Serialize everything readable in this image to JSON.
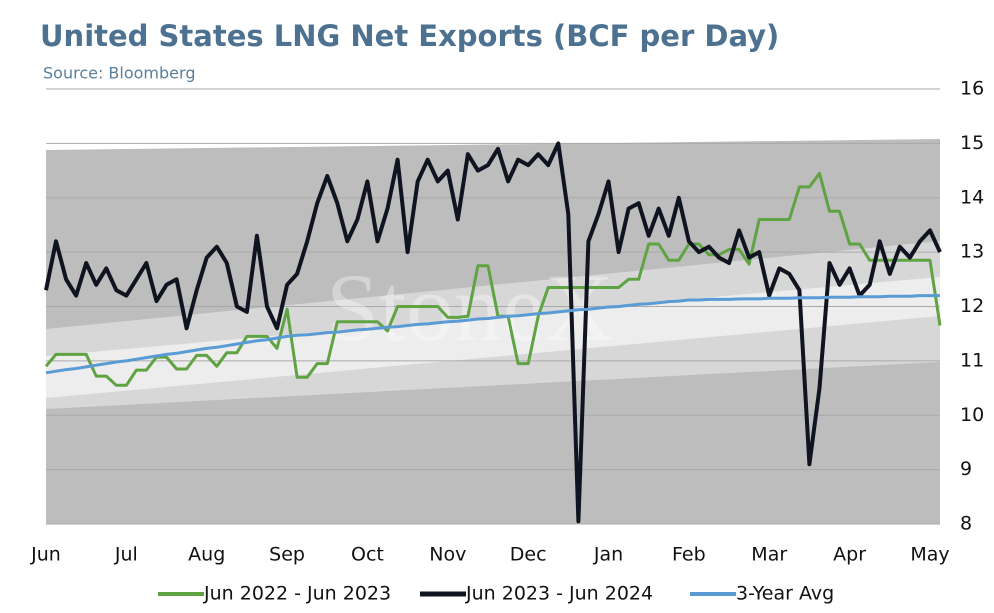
{
  "chart_data": {
    "type": "line",
    "title": "United States LNG Net Exports (BCF per Day)",
    "subtitle": "Source: Bloomberg",
    "watermark": "StoneX",
    "categories": [
      "Jun",
      null,
      null,
      null,
      null,
      null,
      null,
      null,
      "Jul",
      null,
      null,
      null,
      null,
      null,
      null,
      null,
      "Aug",
      null,
      null,
      null,
      null,
      null,
      null,
      null,
      "Sep",
      null,
      null,
      null,
      null,
      null,
      null,
      null,
      "Oct",
      null,
      null,
      null,
      null,
      null,
      null,
      null,
      "Nov",
      null,
      null,
      null,
      null,
      null,
      null,
      null,
      "Dec",
      null,
      null,
      null,
      null,
      null,
      null,
      null,
      "Jan",
      null,
      null,
      null,
      null,
      null,
      null,
      null,
      "Feb",
      null,
      null,
      null,
      null,
      null,
      null,
      null,
      "Mar",
      null,
      null,
      null,
      null,
      null,
      null,
      null,
      "Apr",
      null,
      null,
      null,
      null,
      null,
      null,
      null,
      "May",
      null
    ],
    "series": [
      {
        "name": "Jun 2022 - Jun 2023",
        "color": "#5fa343",
        "width": 3,
        "values": [
          10.9,
          11.12,
          11.12,
          11.12,
          11.12,
          10.72,
          10.72,
          10.55,
          10.55,
          10.83,
          10.83,
          11.07,
          11.07,
          10.85,
          10.85,
          11.1,
          11.1,
          10.9,
          11.15,
          11.15,
          11.45,
          11.45,
          11.45,
          11.23,
          11.95,
          10.7,
          10.7,
          10.95,
          10.95,
          11.72,
          11.72,
          11.72,
          11.72,
          11.72,
          11.55,
          12.0,
          12.0,
          12.0,
          12.0,
          12.0,
          11.8,
          11.8,
          11.82,
          12.75,
          12.75,
          11.82,
          11.82,
          10.95,
          10.95,
          11.82,
          12.35,
          12.35,
          12.35,
          12.35,
          12.35,
          12.35,
          12.35,
          12.35,
          12.5,
          12.5,
          13.15,
          13.15,
          12.85,
          12.85,
          13.15,
          13.15,
          12.95,
          12.95,
          13.05,
          13.05,
          12.78,
          13.6,
          13.6,
          13.6,
          13.6,
          14.2,
          14.2,
          14.45,
          13.75,
          13.75,
          13.15,
          13.15,
          12.85,
          12.85,
          12.85,
          12.85,
          12.85,
          12.85,
          12.85,
          11.65
        ]
      },
      {
        "name": "Jun 2023 - Jun 2024",
        "color": "#0f1420",
        "width": 4,
        "values": [
          12.3,
          13.2,
          12.5,
          12.2,
          12.8,
          12.4,
          12.7,
          12.3,
          12.2,
          12.5,
          12.8,
          12.1,
          12.4,
          12.5,
          11.6,
          12.3,
          12.9,
          13.1,
          12.8,
          12.0,
          11.9,
          13.3,
          12.0,
          11.6,
          12.4,
          12.6,
          13.2,
          13.9,
          14.4,
          13.9,
          13.2,
          13.6,
          14.3,
          13.2,
          13.8,
          14.7,
          13.0,
          14.3,
          14.7,
          14.3,
          14.5,
          13.6,
          14.8,
          14.5,
          14.6,
          14.9,
          14.3,
          14.7,
          14.6,
          14.8,
          14.6,
          15.0,
          13.7,
          8.05,
          13.2,
          13.7,
          14.3,
          13.0,
          13.8,
          13.9,
          13.3,
          13.8,
          13.3,
          14.0,
          13.2,
          13.0,
          13.1,
          12.9,
          12.8,
          13.4,
          12.9,
          13.0,
          12.2,
          12.7,
          12.6,
          12.3,
          9.1,
          10.5,
          12.8,
          12.4,
          12.7,
          12.2,
          12.4,
          13.2,
          12.6,
          13.1,
          12.9,
          13.2,
          13.4,
          13.0
        ]
      },
      {
        "name": "3-Year Avg",
        "color": "#5b9bd5",
        "width": 3,
        "values": [
          10.78,
          10.81,
          10.84,
          10.86,
          10.89,
          10.92,
          10.95,
          10.98,
          11.0,
          11.03,
          11.06,
          11.09,
          11.12,
          11.14,
          11.17,
          11.2,
          11.23,
          11.25,
          11.28,
          11.31,
          11.34,
          11.37,
          11.39,
          11.42,
          11.45,
          11.47,
          11.48,
          11.5,
          11.52,
          11.53,
          11.55,
          11.57,
          11.58,
          11.6,
          11.62,
          11.63,
          11.65,
          11.67,
          11.68,
          11.7,
          11.72,
          11.73,
          11.75,
          11.77,
          11.78,
          11.8,
          11.82,
          11.83,
          11.85,
          11.87,
          11.88,
          11.9,
          11.92,
          11.94,
          11.95,
          11.97,
          11.99,
          12.0,
          12.02,
          12.04,
          12.05,
          12.07,
          12.09,
          12.1,
          12.12,
          12.12,
          12.13,
          12.13,
          12.13,
          12.14,
          12.14,
          12.14,
          12.15,
          12.15,
          12.15,
          12.16,
          12.16,
          12.16,
          12.17,
          12.17,
          12.17,
          12.18,
          12.18,
          12.18,
          12.19,
          12.19,
          12.19,
          12.2,
          12.2,
          12.2
        ]
      }
    ],
    "ylim": [
      8,
      16
    ],
    "yticks": [
      8,
      9,
      10,
      11,
      12,
      13,
      14,
      15,
      16
    ],
    "y_axis_side": "right",
    "grid": true,
    "legend": "bottom"
  }
}
